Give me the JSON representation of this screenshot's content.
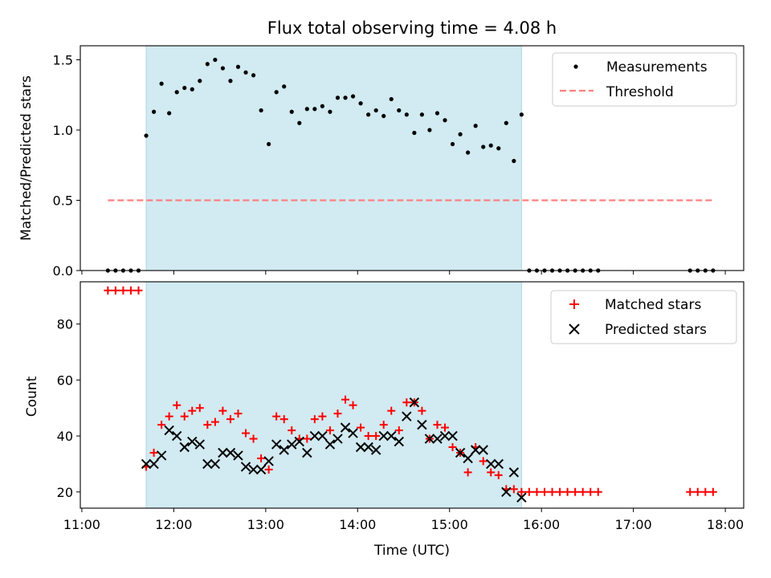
{
  "figure": {
    "title": "Flux total observing time = 4.08 h",
    "xlabel": "Time (UTC)",
    "x_ticks": [
      "11:00",
      "12:00",
      "13:00",
      "14:00",
      "15:00",
      "16:00",
      "17:00",
      "18:00"
    ],
    "colors": {
      "shade": "#add8e6",
      "measurement": "#000000",
      "threshold": "#ff7f7f",
      "matched": "#ff0000",
      "predicted": "#000000"
    }
  },
  "chart_data": [
    {
      "type": "scatter",
      "ylabel": "Matched/Predicted stars",
      "xlim": [
        "10:59",
        "18:12"
      ],
      "ylim": [
        0,
        1.6
      ],
      "y_ticks": [
        "0.0",
        "0.5",
        "1.0",
        "1.5"
      ],
      "shaded_region": [
        "11:42",
        "15:47"
      ],
      "legend_position": "top-right",
      "series": [
        {
          "name": "Measurements",
          "kind": "points",
          "x": [
            "11:17",
            "11:22",
            "11:27",
            "11:32",
            "11:37",
            "11:42",
            "11:47",
            "11:52",
            "11:57",
            "12:02",
            "12:07",
            "12:12",
            "12:17",
            "12:22",
            "12:27",
            "12:32",
            "12:37",
            "12:42",
            "12:47",
            "12:52",
            "12:57",
            "13:02",
            "13:07",
            "13:12",
            "13:17",
            "13:22",
            "13:27",
            "13:32",
            "13:37",
            "13:42",
            "13:47",
            "13:52",
            "13:57",
            "14:02",
            "14:07",
            "14:12",
            "14:17",
            "14:22",
            "14:27",
            "14:32",
            "14:37",
            "14:42",
            "14:47",
            "14:52",
            "14:57",
            "15:02",
            "15:07",
            "15:12",
            "15:17",
            "15:22",
            "15:27",
            "15:32",
            "15:37",
            "15:42",
            "15:47",
            "15:52",
            "15:57",
            "16:02",
            "16:07",
            "16:12",
            "16:17",
            "16:22",
            "16:27",
            "16:32",
            "16:37",
            "17:37",
            "17:42",
            "17:47",
            "17:52"
          ],
          "y": [
            0,
            0,
            0,
            0,
            0,
            0.96,
            1.13,
            1.33,
            1.12,
            1.27,
            1.3,
            1.29,
            1.35,
            1.47,
            1.5,
            1.44,
            1.35,
            1.45,
            1.41,
            1.39,
            1.14,
            0.9,
            1.27,
            1.31,
            1.13,
            1.05,
            1.15,
            1.15,
            1.17,
            1.13,
            1.23,
            1.23,
            1.24,
            1.19,
            1.11,
            1.14,
            1.1,
            1.22,
            1.14,
            1.11,
            0.98,
            1.11,
            1.0,
            1.12,
            1.07,
            0.9,
            0.97,
            0.84,
            1.03,
            0.88,
            0.89,
            0.87,
            1.05,
            0.78,
            1.11,
            0,
            0,
            0,
            0,
            0,
            0,
            0,
            0,
            0,
            0,
            0,
            0,
            0,
            0
          ]
        },
        {
          "name": "Threshold",
          "kind": "dashed-line",
          "x": [
            "11:17",
            "17:52"
          ],
          "y": [
            0.5,
            0.5
          ]
        }
      ]
    },
    {
      "type": "scatter",
      "ylabel": "Count",
      "xlim": [
        "10:59",
        "18:12"
      ],
      "ylim": [
        14.2,
        95.1
      ],
      "y_ticks": [
        "20",
        "40",
        "60",
        "80"
      ],
      "shaded_region": [
        "11:42",
        "15:47"
      ],
      "legend_position": "top-right",
      "series": [
        {
          "name": "Matched stars",
          "kind": "plus-markers",
          "x": [
            "11:17",
            "11:22",
            "11:27",
            "11:32",
            "11:37",
            "11:42",
            "11:47",
            "11:52",
            "11:57",
            "12:02",
            "12:07",
            "12:12",
            "12:17",
            "12:22",
            "12:27",
            "12:32",
            "12:37",
            "12:42",
            "12:47",
            "12:52",
            "12:57",
            "13:02",
            "13:07",
            "13:12",
            "13:17",
            "13:22",
            "13:27",
            "13:32",
            "13:37",
            "13:42",
            "13:47",
            "13:52",
            "13:57",
            "14:02",
            "14:07",
            "14:12",
            "14:17",
            "14:22",
            "14:27",
            "14:32",
            "14:37",
            "14:42",
            "14:47",
            "14:52",
            "14:57",
            "15:02",
            "15:07",
            "15:12",
            "15:17",
            "15:22",
            "15:27",
            "15:32",
            "15:37",
            "15:42",
            "15:47",
            "15:52",
            "15:57",
            "16:02",
            "16:07",
            "16:12",
            "16:17",
            "16:22",
            "16:27",
            "16:32",
            "16:37",
            "17:37",
            "17:42",
            "17:47",
            "17:52"
          ],
          "y": [
            92,
            92,
            92,
            92,
            92,
            29,
            34,
            44,
            47,
            51,
            47,
            49,
            50,
            44,
            45,
            49,
            46,
            48,
            41,
            39,
            32,
            28,
            47,
            46,
            42,
            39,
            39,
            46,
            47,
            42,
            48,
            53,
            51,
            43,
            40,
            40,
            44,
            49,
            42,
            52,
            52,
            49,
            39,
            44,
            43,
            36,
            34,
            27,
            36,
            31,
            27,
            26,
            21,
            21,
            20,
            20,
            20,
            20,
            20,
            20,
            20,
            20,
            20,
            20,
            20,
            20,
            20,
            20,
            20
          ]
        },
        {
          "name": "Predicted stars",
          "kind": "x-markers",
          "x": [
            "11:42",
            "11:47",
            "11:52",
            "11:57",
            "12:02",
            "12:07",
            "12:12",
            "12:17",
            "12:22",
            "12:27",
            "12:32",
            "12:37",
            "12:42",
            "12:47",
            "12:52",
            "12:57",
            "13:02",
            "13:07",
            "13:12",
            "13:17",
            "13:22",
            "13:27",
            "13:32",
            "13:37",
            "13:42",
            "13:47",
            "13:52",
            "13:57",
            "14:02",
            "14:07",
            "14:12",
            "14:17",
            "14:22",
            "14:27",
            "14:32",
            "14:37",
            "14:42",
            "14:47",
            "14:52",
            "14:57",
            "15:02",
            "15:07",
            "15:12",
            "15:17",
            "15:22",
            "15:27",
            "15:32",
            "15:37",
            "15:42",
            "15:47"
          ],
          "y": [
            30,
            30,
            33,
            42,
            40,
            36,
            38,
            37,
            30,
            30,
            34,
            34,
            33,
            29,
            28,
            28,
            31,
            37,
            35,
            37,
            38,
            34,
            40,
            40,
            37,
            39,
            43,
            41,
            36,
            36,
            35,
            40,
            40,
            38,
            47,
            52,
            44,
            39,
            39,
            40,
            40,
            34,
            32,
            35,
            35,
            30,
            30,
            20,
            27,
            18
          ]
        }
      ]
    }
  ]
}
